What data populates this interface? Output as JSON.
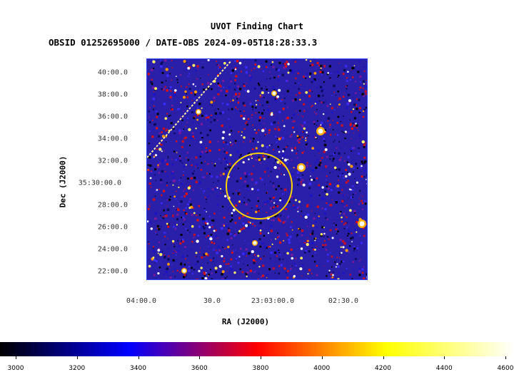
{
  "chart_data": {
    "type": "heatmap",
    "title": "UVOT Finding Chart",
    "subtitle": "OBSID 01252695000 / DATE-OBS 2024-09-05T18:28:33.3",
    "xlabel": "RA (J2000)",
    "ylabel": "Dec (J2000)",
    "x_ticks": [
      "04:00.0",
      "30.0",
      "23:03:00.0",
      "02:30.0"
    ],
    "y_ticks": [
      "40:00.0",
      "38:00.0",
      "36:00.0",
      "34:00.0",
      "32:00.0",
      "35:30:00.0",
      "28:00.0",
      "26:00.0",
      "24:00.0",
      "22:00.0"
    ],
    "colorbar": {
      "range": [
        3000,
        4600
      ],
      "ticks": [
        3000,
        3200,
        3400,
        3600,
        3800,
        4000,
        4200,
        4400,
        4600
      ],
      "colormap": [
        "#000000",
        "#0000ff",
        "#ff0000",
        "#ffff00",
        "#ffffff"
      ]
    },
    "marker": {
      "shape": "circle",
      "color": "#ffd400"
    },
    "grid": false
  }
}
